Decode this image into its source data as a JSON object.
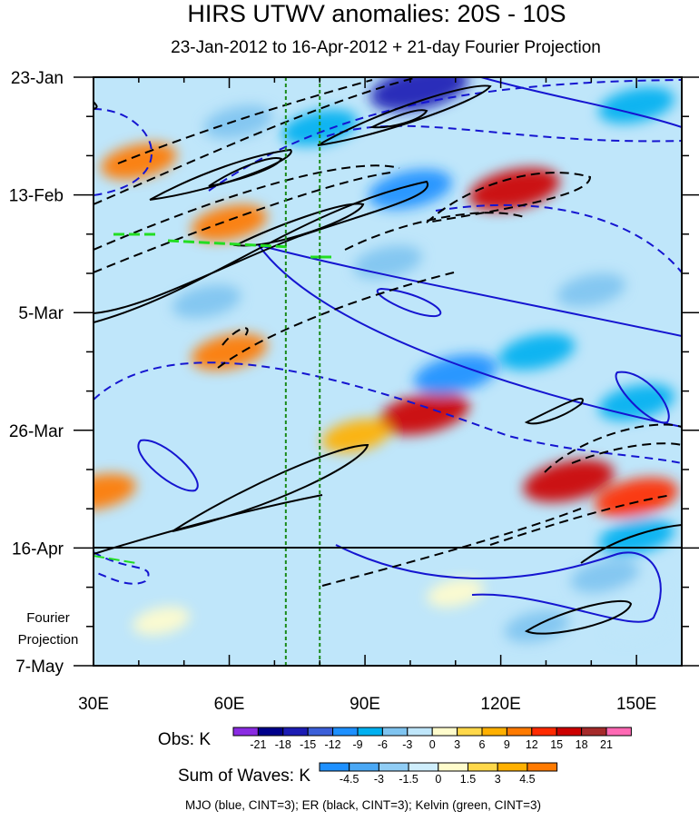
{
  "chart_data": {
    "type": "heatmap",
    "title": "HIRS UTWV anomalies: 20S - 10S",
    "subtitle": "23-Jan-2012 to 16-Apr-2012 + 21-day Fourier Projection",
    "xlabel": "",
    "ylabel": "",
    "x_range": [
      30,
      160
    ],
    "x_units": "degrees E",
    "x_ticks": [
      {
        "value": 30,
        "label": "30E"
      },
      {
        "value": 60,
        "label": "60E"
      },
      {
        "value": 90,
        "label": "90E"
      },
      {
        "value": 120,
        "label": "120E"
      },
      {
        "value": 150,
        "label": "150E"
      }
    ],
    "time_range_days": [
      0,
      105
    ],
    "y_ticks": [
      {
        "day": 0,
        "label": "23-Jan"
      },
      {
        "day": 21,
        "label": "13-Feb"
      },
      {
        "day": 42,
        "label": "5-Mar"
      },
      {
        "day": 63,
        "label": "26-Mar"
      },
      {
        "day": 84,
        "label": "16-Apr"
      },
      {
        "day": 105,
        "label": "7-May"
      }
    ],
    "projection": {
      "start_day": 84,
      "label_line1": "Fourier",
      "label_line2": "Projection"
    },
    "reference_longitudes": [
      72.5,
      80
    ],
    "obs_colorbar": {
      "label": "Obs: K",
      "levels": [
        "-21",
        "-18",
        "-15",
        "-12",
        "-9",
        "-6",
        "-3",
        "0",
        "3",
        "6",
        "9",
        "12",
        "15",
        "18",
        "21"
      ],
      "colors": [
        "#8a2be2",
        "#00008b",
        "#1c1cb4",
        "#3b5fd9",
        "#1e90ff",
        "#00b0f0",
        "#7fc4f0",
        "#bfe6fa",
        "#fffccc",
        "#ffd84a",
        "#ffb000",
        "#ff7a00",
        "#ff2a00",
        "#cc0000",
        "#a52a2a",
        "#ff69b4"
      ]
    },
    "waves_colorbar": {
      "label": "Sum of Waves: K",
      "levels": [
        "-4.5",
        "-3",
        "-1.5",
        "0",
        "1.5",
        "3",
        "4.5"
      ],
      "colors": [
        "#1e90ff",
        "#4aa8f5",
        "#90cdf5",
        "#cfeefc",
        "#fffccc",
        "#ffd84a",
        "#ffb000",
        "#ff7a00"
      ]
    },
    "contours_note": "MJO (blue, CINT=3); ER (black, CINT=3); Kelvin (green, CINT=3)",
    "series": [
      {
        "name": "MJO",
        "color": "blue",
        "cint": 3
      },
      {
        "name": "ER",
        "color": "black",
        "cint": 3
      },
      {
        "name": "Kelvin",
        "color": "green",
        "cint": 3
      }
    ],
    "anomaly_features": [
      {
        "lon": 123,
        "day": 20,
        "value": 15
      },
      {
        "lon": 103,
        "day": 60,
        "value": 15
      },
      {
        "lon": 135,
        "day": 72,
        "value": 15
      },
      {
        "lon": 150,
        "day": 75,
        "value": 12
      },
      {
        "lon": 60,
        "day": 49,
        "value": 9
      },
      {
        "lon": 40,
        "day": 15,
        "value": 9
      },
      {
        "lon": 60,
        "day": 26,
        "value": 9
      },
      {
        "lon": 31,
        "day": 74,
        "value": 9
      },
      {
        "lon": 88,
        "day": 64,
        "value": 6
      },
      {
        "lon": 102,
        "day": 2,
        "value": -18
      },
      {
        "lon": 100,
        "day": 20,
        "value": -12
      },
      {
        "lon": 110,
        "day": 53,
        "value": -12
      },
      {
        "lon": 128,
        "day": 49,
        "value": -9
      },
      {
        "lon": 80,
        "day": 9,
        "value": -9
      },
      {
        "lon": 150,
        "day": 5,
        "value": -9
      },
      {
        "lon": 150,
        "day": 58,
        "value": -9
      },
      {
        "lon": 150,
        "day": 82,
        "value": -9
      },
      {
        "lon": 143,
        "day": 89,
        "value": -6
      },
      {
        "lon": 150,
        "day": 93,
        "value": -3
      },
      {
        "lon": 140,
        "day": 38,
        "value": -6
      },
      {
        "lon": 55,
        "day": 40,
        "value": -6
      },
      {
        "lon": 95,
        "day": 33,
        "value": -6
      },
      {
        "lon": 62,
        "day": 8,
        "value": -6
      },
      {
        "lon": 128,
        "day": 98,
        "value": -4.5
      },
      {
        "lon": 150,
        "day": 98,
        "value": -1.5
      },
      {
        "lon": 110,
        "day": 92,
        "value": 1.5
      },
      {
        "lon": 45,
        "day": 97,
        "value": 1.5
      }
    ]
  }
}
